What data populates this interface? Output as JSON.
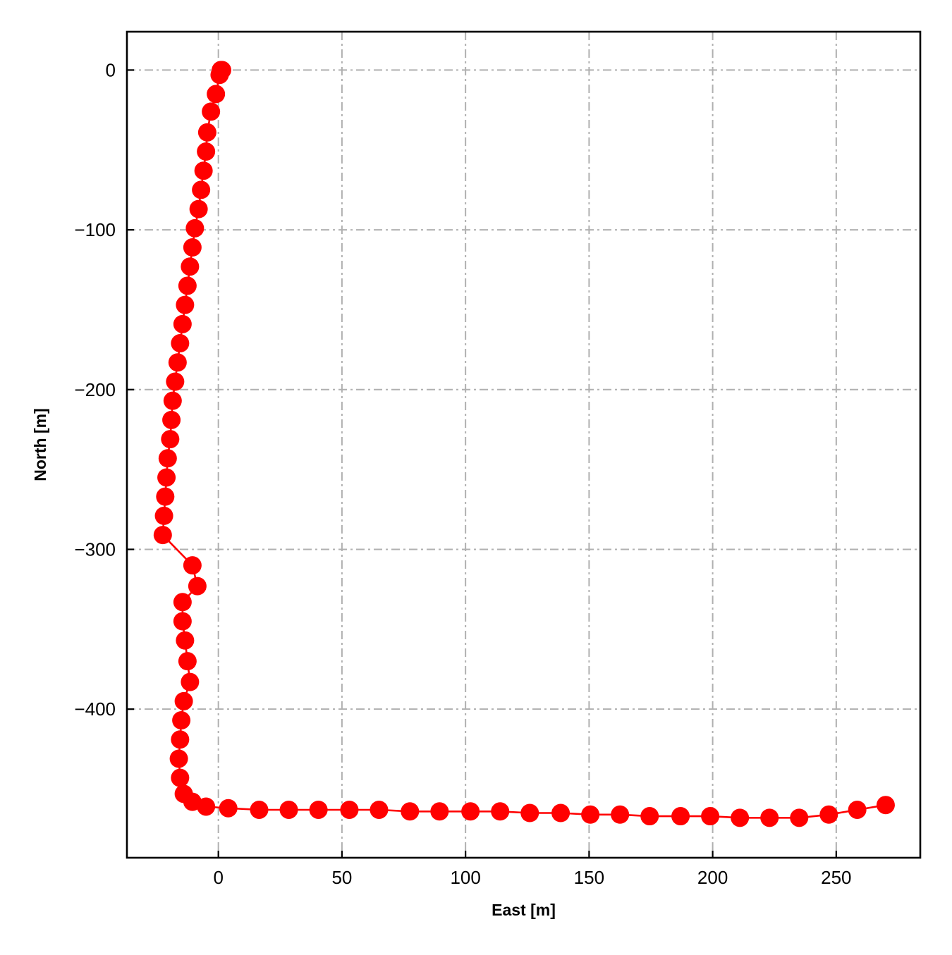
{
  "chart_data": {
    "type": "line",
    "title": "",
    "xlabel": "East [m]",
    "ylabel": "North [m]",
    "xlim": [
      -37,
      284
    ],
    "ylim": [
      -493,
      24
    ],
    "xticks": [
      0,
      50,
      100,
      150,
      200,
      250
    ],
    "yticks": [
      0,
      -100,
      -200,
      -300,
      -400
    ],
    "x_tick_labels": [
      "0",
      "50",
      "100",
      "150",
      "200",
      "250"
    ],
    "y_tick_labels": [
      "0",
      "−100",
      "−200",
      "−300",
      "−400"
    ],
    "grid": true,
    "legend": "none",
    "series": [
      {
        "color": "#ff0000",
        "marker": "circle",
        "points": [
          {
            "x": 1.5,
            "y": 0
          },
          {
            "x": 1.0,
            "y": 0
          },
          {
            "x": 0.5,
            "y": -3
          },
          {
            "x": -1.0,
            "y": -15
          },
          {
            "x": -3.0,
            "y": -26
          },
          {
            "x": -4.5,
            "y": -39
          },
          {
            "x": -5.0,
            "y": -51
          },
          {
            "x": -6.0,
            "y": -63
          },
          {
            "x": -7.0,
            "y": -75
          },
          {
            "x": -8.0,
            "y": -87
          },
          {
            "x": -9.5,
            "y": -99
          },
          {
            "x": -10.5,
            "y": -111
          },
          {
            "x": -11.5,
            "y": -123
          },
          {
            "x": -12.5,
            "y": -135
          },
          {
            "x": -13.5,
            "y": -147
          },
          {
            "x": -14.5,
            "y": -159
          },
          {
            "x": -15.5,
            "y": -171
          },
          {
            "x": -16.5,
            "y": -183
          },
          {
            "x": -17.5,
            "y": -195
          },
          {
            "x": -18.5,
            "y": -207
          },
          {
            "x": -19.0,
            "y": -219
          },
          {
            "x": -19.5,
            "y": -231
          },
          {
            "x": -20.5,
            "y": -243
          },
          {
            "x": -21.0,
            "y": -255
          },
          {
            "x": -21.5,
            "y": -267
          },
          {
            "x": -22.0,
            "y": -279
          },
          {
            "x": -22.5,
            "y": -291
          },
          {
            "x": -10.5,
            "y": -310
          },
          {
            "x": -8.5,
            "y": -323
          },
          {
            "x": -14.5,
            "y": -333
          },
          {
            "x": -14.5,
            "y": -345
          },
          {
            "x": -13.5,
            "y": -357
          },
          {
            "x": -12.5,
            "y": -370
          },
          {
            "x": -11.5,
            "y": -383
          },
          {
            "x": -14.0,
            "y": -395
          },
          {
            "x": -15.0,
            "y": -407
          },
          {
            "x": -15.5,
            "y": -419
          },
          {
            "x": -16.0,
            "y": -431
          },
          {
            "x": -15.5,
            "y": -443
          },
          {
            "x": -14.0,
            "y": -453
          },
          {
            "x": -10.5,
            "y": -458
          },
          {
            "x": -5.0,
            "y": -461
          },
          {
            "x": 4.0,
            "y": -462
          },
          {
            "x": 16.5,
            "y": -463
          },
          {
            "x": 28.5,
            "y": -463
          },
          {
            "x": 40.5,
            "y": -463
          },
          {
            "x": 53.0,
            "y": -463
          },
          {
            "x": 65.0,
            "y": -463
          },
          {
            "x": 77.5,
            "y": -464
          },
          {
            "x": 89.5,
            "y": -464
          },
          {
            "x": 102.0,
            "y": -464
          },
          {
            "x": 114.0,
            "y": -464
          },
          {
            "x": 126.0,
            "y": -465
          },
          {
            "x": 138.5,
            "y": -465
          },
          {
            "x": 150.5,
            "y": -466
          },
          {
            "x": 162.5,
            "y": -466
          },
          {
            "x": 174.5,
            "y": -467
          },
          {
            "x": 187.0,
            "y": -467
          },
          {
            "x": 199.0,
            "y": -467
          },
          {
            "x": 211.0,
            "y": -468
          },
          {
            "x": 223.0,
            "y": -468
          },
          {
            "x": 235.0,
            "y": -468
          },
          {
            "x": 247.0,
            "y": -466
          },
          {
            "x": 258.5,
            "y": -463
          },
          {
            "x": 270.0,
            "y": -460
          }
        ]
      }
    ]
  }
}
